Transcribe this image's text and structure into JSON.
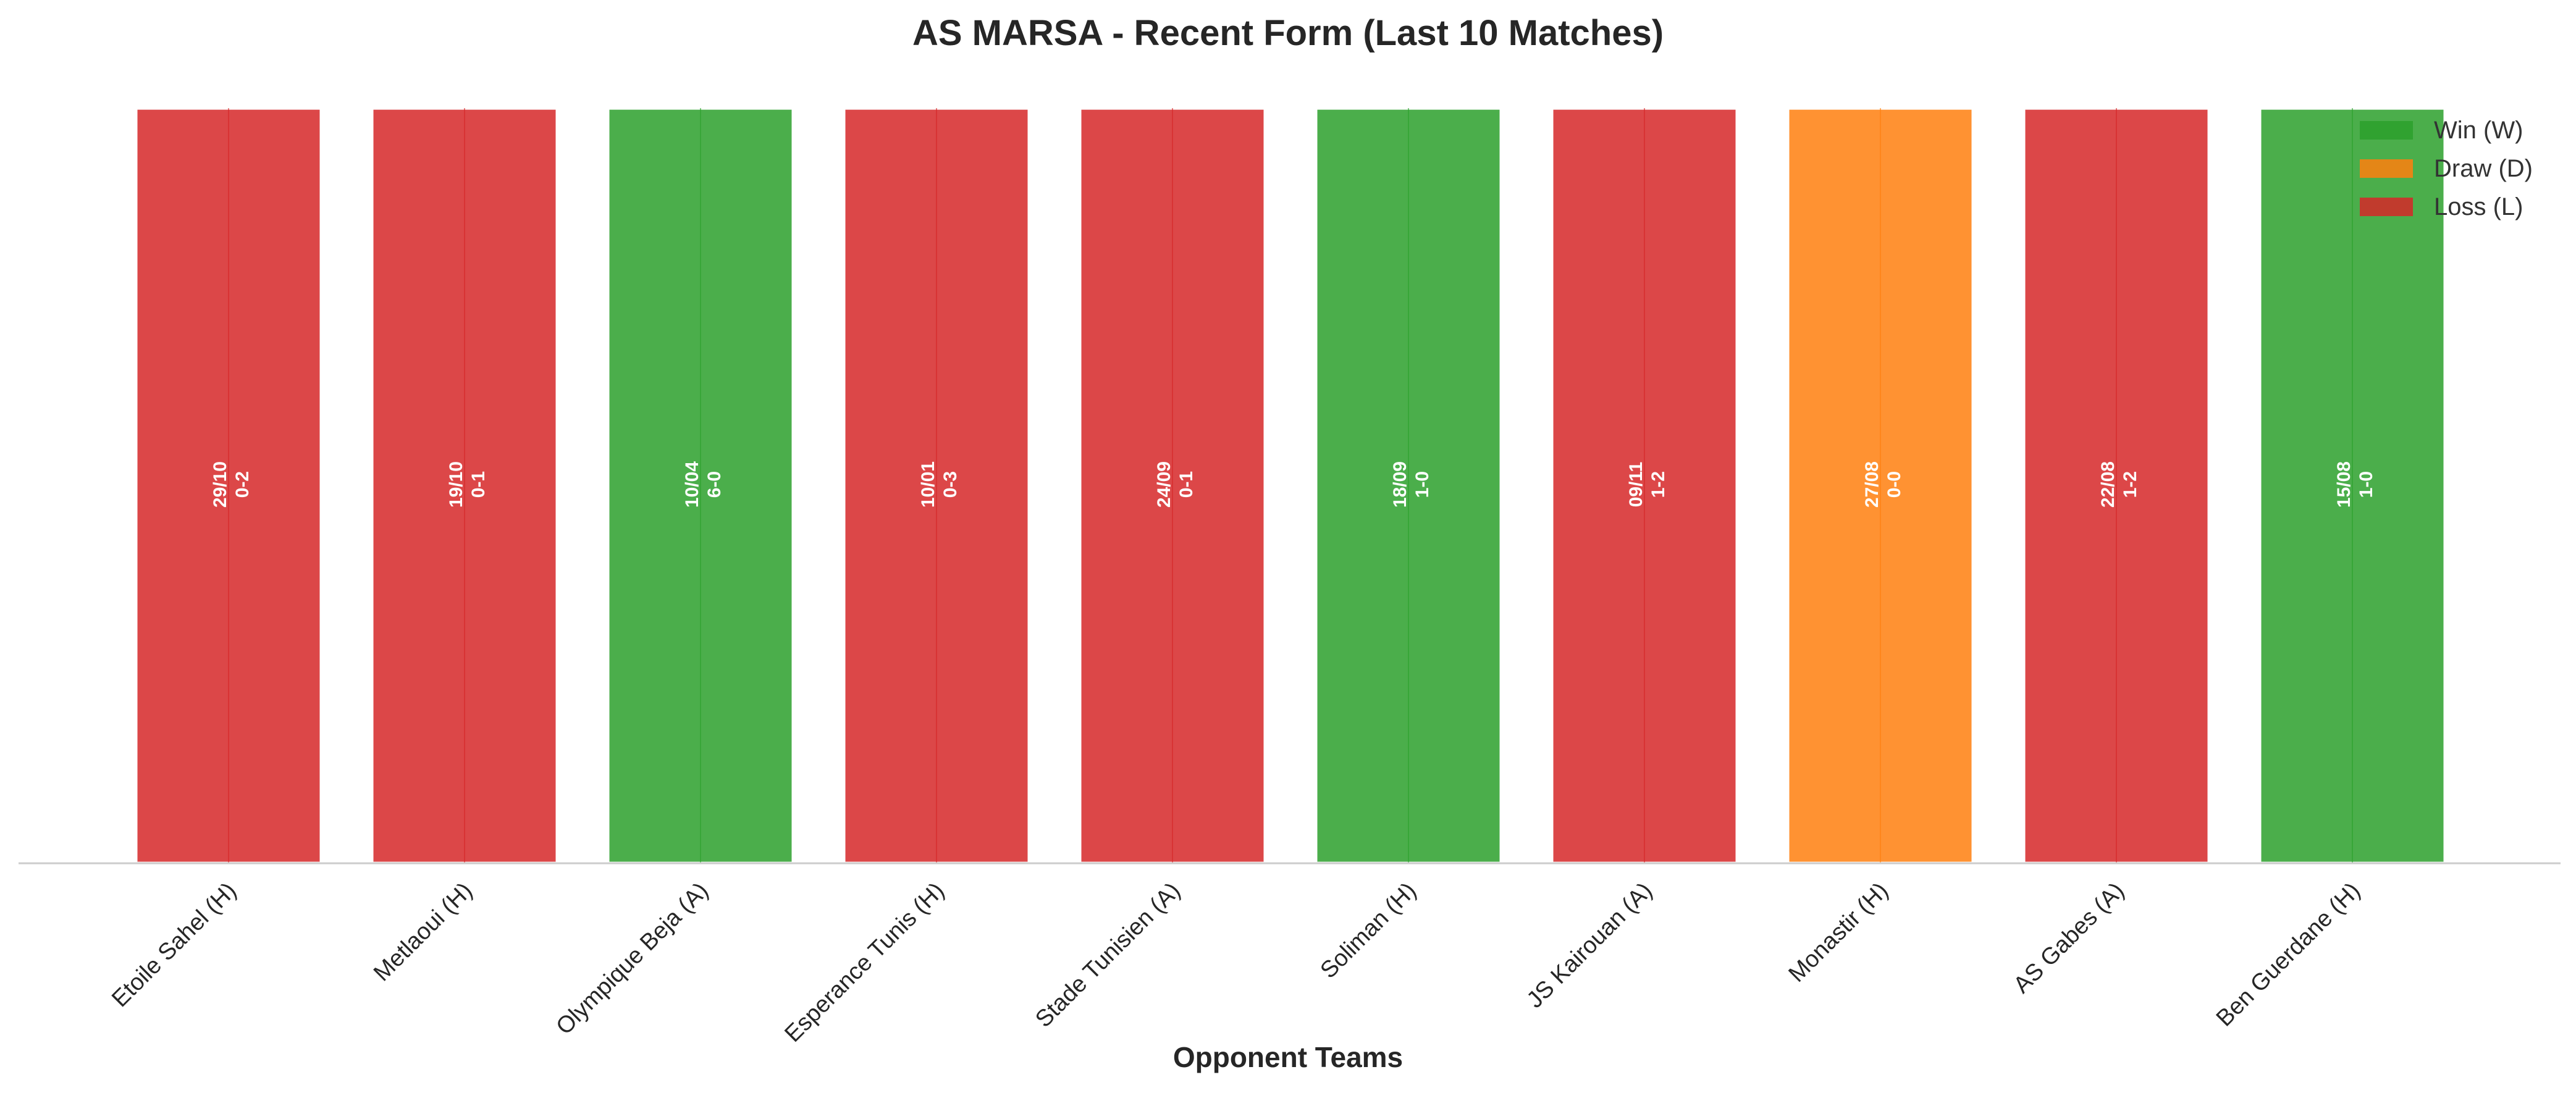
{
  "chart_data": {
    "type": "bar",
    "title": "AS MARSA - Recent Form (Last 10 Matches)",
    "xlabel": "Opponent Teams",
    "ylabel": "",
    "categories": [
      "Etoile Sahel (H)",
      "Metlaoui (H)",
      "Olympique Beja (A)",
      "Esperance Tunis (H)",
      "Stade Tunisien (A)",
      "Soliman (H)",
      "JS Kairouan (A)",
      "Monastir (H)",
      "AS Gabes (A)",
      "Ben Guerdane (H)"
    ],
    "values": [
      1,
      1,
      1,
      1,
      1,
      1,
      1,
      1,
      1,
      1
    ],
    "results": [
      "L",
      "L",
      "W",
      "L",
      "L",
      "W",
      "L",
      "D",
      "L",
      "W"
    ],
    "dates": [
      "29/10",
      "19/10",
      "10/04",
      "10/01",
      "24/09",
      "18/09",
      "09/11",
      "27/08",
      "22/08",
      "15/08"
    ],
    "scores": [
      "0-2",
      "0-1",
      "6-0",
      "0-3",
      "0-1",
      "1-0",
      "1-2",
      "0-0",
      "1-2",
      "1-0"
    ],
    "ylim": [
      0,
      1.05
    ],
    "grid": false,
    "legend_position": "top-right",
    "legend": [
      {
        "key": "W",
        "label": "Win (W)",
        "color": "#2ca02c"
      },
      {
        "key": "D",
        "label": "Draw (D)",
        "color": "#ff7f0e"
      },
      {
        "key": "L",
        "label": "Loss (L)",
        "color": "#d62728"
      }
    ]
  }
}
